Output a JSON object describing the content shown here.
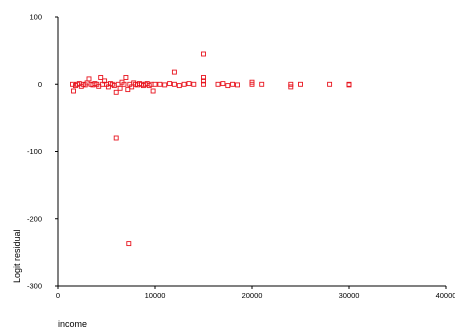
{
  "chart_data": {
    "type": "scatter",
    "title": "",
    "xlabel": "income",
    "ylabel": "Logit residual",
    "xlim": [
      0,
      40000
    ],
    "ylim": [
      -300,
      100
    ],
    "xticks": [
      0,
      10000,
      20000,
      30000,
      40000
    ],
    "yticks": [
      100,
      0,
      -100,
      -200,
      -300
    ],
    "xtick_labels": [
      "0",
      "10000",
      "20000",
      "30000",
      "40000"
    ],
    "ytick_labels": [
      "100",
      "0",
      "-100",
      "-200",
      "-300"
    ],
    "grid": false,
    "legend": "none",
    "marker": "hollow-square",
    "point_color": "#e8141e",
    "series": [
      {
        "points": [
          [
            1500,
            0
          ],
          [
            1600,
            -10
          ],
          [
            1800,
            -2
          ],
          [
            2000,
            0
          ],
          [
            2200,
            1
          ],
          [
            2400,
            -3
          ],
          [
            2600,
            0
          ],
          [
            2800,
            -1
          ],
          [
            3000,
            2
          ],
          [
            3200,
            8
          ],
          [
            3400,
            0
          ],
          [
            3600,
            -1
          ],
          [
            3800,
            1
          ],
          [
            4000,
            0
          ],
          [
            4200,
            -3
          ],
          [
            4400,
            10
          ],
          [
            4600,
            0
          ],
          [
            4800,
            5
          ],
          [
            5000,
            0
          ],
          [
            5200,
            -4
          ],
          [
            5400,
            1
          ],
          [
            5600,
            0
          ],
          [
            5800,
            -2
          ],
          [
            6000,
            -80
          ],
          [
            6000,
            -12
          ],
          [
            6200,
            0
          ],
          [
            6400,
            -6
          ],
          [
            6600,
            3
          ],
          [
            6800,
            0
          ],
          [
            7000,
            10
          ],
          [
            7200,
            -8
          ],
          [
            7300,
            -237
          ],
          [
            7400,
            0
          ],
          [
            7600,
            -4
          ],
          [
            7800,
            2
          ],
          [
            8000,
            0
          ],
          [
            8200,
            -1
          ],
          [
            8400,
            1
          ],
          [
            8600,
            0
          ],
          [
            8800,
            -2
          ],
          [
            9000,
            0
          ],
          [
            9200,
            1
          ],
          [
            9400,
            -2
          ],
          [
            9600,
            0
          ],
          [
            9800,
            -10
          ],
          [
            10000,
            0
          ],
          [
            10500,
            0
          ],
          [
            11000,
            -1
          ],
          [
            11500,
            1
          ],
          [
            12000,
            0
          ],
          [
            12000,
            18
          ],
          [
            12500,
            -2
          ],
          [
            13000,
            0
          ],
          [
            13500,
            1
          ],
          [
            14000,
            0
          ],
          [
            15000,
            0
          ],
          [
            15000,
            5
          ],
          [
            15000,
            10
          ],
          [
            15000,
            45
          ],
          [
            16500,
            0
          ],
          [
            17000,
            1
          ],
          [
            17500,
            -2
          ],
          [
            18000,
            0
          ],
          [
            18500,
            -1
          ],
          [
            20000,
            0
          ],
          [
            20000,
            3
          ],
          [
            21000,
            0
          ],
          [
            24000,
            -4
          ],
          [
            24000,
            0
          ],
          [
            25000,
            0
          ],
          [
            28000,
            0
          ],
          [
            30000,
            0
          ],
          [
            30000,
            -1
          ]
        ]
      }
    ]
  }
}
